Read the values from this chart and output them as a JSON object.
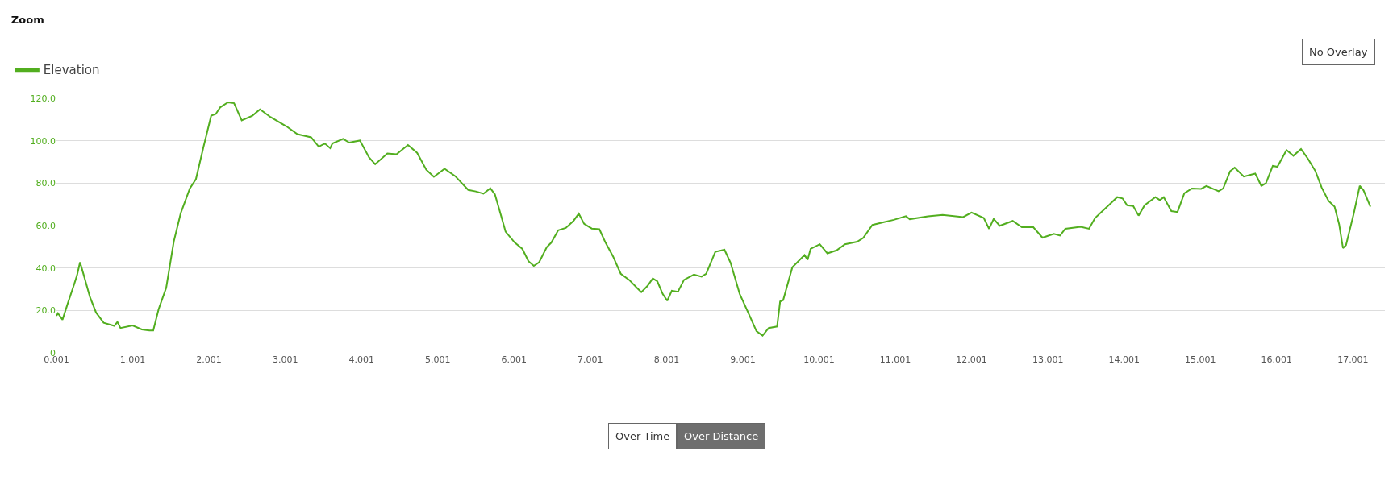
{
  "chart_data": {
    "type": "line",
    "title": "Zoom",
    "x": [
      0.001,
      0.02,
      0.08,
      0.15,
      0.23,
      0.27,
      0.31,
      0.36,
      0.44,
      0.52,
      0.62,
      0.76,
      0.8,
      0.84,
      1.0,
      1.12,
      1.22,
      1.27,
      1.34,
      1.44,
      1.54,
      1.63,
      1.75,
      1.83,
      1.93,
      2.03,
      2.09,
      2.15,
      2.25,
      2.33,
      2.43,
      2.57,
      2.67,
      2.81,
      3.02,
      3.16,
      3.34,
      3.44,
      3.52,
      3.59,
      3.62,
      3.76,
      3.84,
      3.98,
      4.1,
      4.18,
      4.34,
      4.46,
      4.61,
      4.73,
      4.85,
      4.95,
      5.09,
      5.23,
      5.4,
      5.5,
      5.6,
      5.69,
      5.75,
      5.81,
      5.89,
      6.01,
      6.11,
      6.19,
      6.26,
      6.33,
      6.43,
      6.49,
      6.58,
      6.68,
      6.78,
      6.85,
      6.92,
      7.02,
      7.12,
      7.2,
      7.3,
      7.4,
      7.51,
      7.63,
      7.67,
      7.75,
      7.82,
      7.88,
      7.95,
      8.01,
      8.07,
      8.15,
      8.23,
      8.36,
      8.46,
      8.52,
      8.64,
      8.76,
      8.84,
      8.96,
      9.08,
      9.18,
      9.26,
      9.34,
      9.45,
      9.49,
      9.53,
      9.65,
      9.81,
      9.85,
      9.89,
      10.01,
      10.11,
      10.23,
      10.34,
      10.5,
      10.58,
      10.7,
      10.84,
      10.98,
      11.14,
      11.19,
      11.43,
      11.62,
      11.89,
      12.0,
      12.16,
      12.23,
      12.29,
      12.37,
      12.54,
      12.66,
      12.81,
      12.93,
      13.08,
      13.16,
      13.23,
      13.43,
      13.54,
      13.62,
      13.77,
      13.91,
      13.98,
      14.04,
      14.12,
      14.19,
      14.27,
      14.41,
      14.47,
      14.52,
      14.62,
      14.7,
      14.79,
      14.89,
      15.01,
      15.08,
      15.24,
      15.3,
      15.39,
      15.45,
      15.57,
      15.72,
      15.8,
      15.86,
      15.95,
      16.01,
      16.13,
      16.22,
      16.32,
      16.41,
      16.51,
      16.59,
      16.68,
      16.76,
      16.82,
      16.87,
      16.91,
      17.01,
      17.09,
      17.14,
      17.23
    ],
    "series": [
      {
        "name": "Elevation",
        "color": "#52ae1f",
        "values": [
          17.5,
          18.7,
          15.6,
          23.4,
          32,
          36.5,
          42.7,
          36.5,
          26.3,
          19,
          14.2,
          12.7,
          14.6,
          11.7,
          12.9,
          11,
          10.5,
          10.5,
          20.5,
          30.7,
          52.6,
          65.8,
          77.5,
          81.9,
          97.2,
          111.8,
          112.6,
          115.8,
          118.1,
          117.7,
          109.6,
          111.8,
          114.8,
          111.1,
          106.7,
          103.1,
          101.6,
          97.2,
          98.7,
          96.5,
          98.7,
          100.9,
          99.1,
          100.1,
          92.1,
          88.9,
          94,
          93.6,
          98,
          94.3,
          86.3,
          83,
          86.8,
          83.3,
          76.8,
          76.1,
          75,
          77.6,
          74.7,
          67.3,
          57.1,
          52,
          49,
          43.2,
          41,
          42.7,
          49.8,
          52,
          57.8,
          58.9,
          62.2,
          65.6,
          60.8,
          58.6,
          58.3,
          52,
          45.4,
          37.3,
          34.4,
          30,
          28.6,
          31.5,
          35.1,
          33.7,
          27.8,
          24.6,
          29.3,
          28.8,
          34.4,
          36.9,
          35.9,
          37.3,
          47.6,
          48.6,
          42.5,
          27.8,
          18.3,
          10.2,
          8.1,
          11.7,
          12.4,
          24.2,
          24.9,
          40.3,
          46.1,
          43.9,
          49,
          51.2,
          46.9,
          48.3,
          51.2,
          52.4,
          54.2,
          60.3,
          61.5,
          62.7,
          64.4,
          63,
          64.4,
          65,
          64,
          66.1,
          63.6,
          58.5,
          63.1,
          59.9,
          62.2,
          59.2,
          59.2,
          54.3,
          56.1,
          55.3,
          58.5,
          59.4,
          58.5,
          63.6,
          68.6,
          73.4,
          72.8,
          69.6,
          69.2,
          64.7,
          69.6,
          73.4,
          72,
          73.4,
          66.8,
          66.4,
          75.2,
          77.5,
          77.3,
          78.7,
          76.2,
          77.5,
          85.6,
          87.3,
          83.1,
          84.5,
          78.7,
          80,
          88.1,
          87.7,
          95.6,
          92.9,
          96.1,
          91.5,
          85.6,
          78,
          71.7,
          68.9,
          60.6,
          49.4,
          50.8,
          65.4,
          78.7,
          76.6,
          68.9
        ]
      }
    ],
    "xlim": [
      0.001,
      17.42
    ],
    "xticks": [
      0.001,
      1.001,
      2.001,
      3.001,
      4.001,
      5.001,
      6.001,
      7.001,
      8.001,
      9.001,
      10.001,
      11.001,
      12.001,
      13.001,
      14.001,
      15.001,
      16.001,
      17.001
    ],
    "ylim": [
      0,
      120
    ],
    "yticks": [
      0,
      {
        "value": 20,
        "label": "20.0"
      },
      {
        "value": 40,
        "label": "40.0"
      },
      {
        "value": 60,
        "label": "60.0"
      },
      {
        "value": 80,
        "label": "80.0"
      },
      {
        "value": 100,
        "label": "100.0"
      },
      {
        "value": 120,
        "label": "120.0"
      }
    ],
    "grid": "y",
    "legend": "top left",
    "marker": "none",
    "line_style": "solid",
    "annotations": [
      "No Overlay",
      "Over Time",
      "Over Distance"
    ]
  }
}
